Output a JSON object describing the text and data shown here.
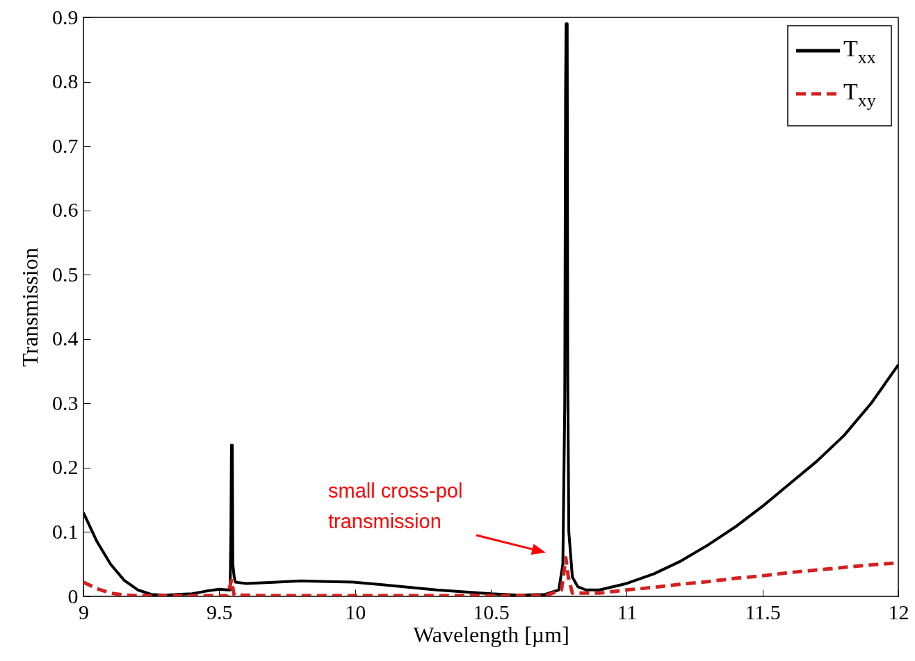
{
  "chart_data": {
    "type": "line",
    "xlabel": "Wavelength [µm]",
    "ylabel": "Transmission",
    "xlim": [
      9,
      12
    ],
    "ylim": [
      0,
      0.9
    ],
    "xticks": [
      9,
      9.5,
      10,
      10.5,
      11,
      11.5,
      12
    ],
    "yticks": [
      0,
      0.1,
      0.2,
      0.3,
      0.4,
      0.5,
      0.6,
      0.7,
      0.8,
      0.9
    ],
    "grid": false,
    "legend": "top right",
    "series": [
      {
        "name": "T$_{xx}$",
        "color": "#000000",
        "line_style": "solid",
        "x": [
          9,
          9.05,
          9.1,
          9.15,
          9.2,
          9.25,
          9.3,
          9.4,
          9.45,
          9.5,
          9.53,
          9.54,
          9.543,
          9.545,
          9.548,
          9.55,
          9.555,
          9.56,
          9.6,
          9.7,
          9.8,
          9.9,
          10,
          10.1,
          10.2,
          10.3,
          10.4,
          10.5,
          10.6,
          10.7,
          10.75,
          10.765,
          10.772,
          10.775,
          10.777,
          10.781,
          10.783,
          10.787,
          10.8,
          10.82,
          10.85,
          10.9,
          11,
          11.1,
          11.2,
          11.3,
          11.4,
          11.5,
          11.6,
          11.7,
          11.8,
          11.9,
          12
        ],
        "values": [
          0.13,
          0.085,
          0.05,
          0.025,
          0.01,
          0.003,
          0.002,
          0.004,
          0.008,
          0.011,
          0.01,
          0.01,
          0.1,
          0.235,
          0.235,
          0.05,
          0.03,
          0.022,
          0.02,
          0.022,
          0.024,
          0.023,
          0.022,
          0.018,
          0.014,
          0.01,
          0.007,
          0.004,
          0.002,
          0.003,
          0.01,
          0.05,
          0.3,
          0.78,
          0.89,
          0.89,
          0.34,
          0.1,
          0.03,
          0.015,
          0.01,
          0.01,
          0.02,
          0.035,
          0.055,
          0.08,
          0.108,
          0.14,
          0.175,
          0.21,
          0.25,
          0.3,
          0.36
        ]
      },
      {
        "name": "T$_{xy}$",
        "color": "#d42020",
        "line_style": "dashed",
        "x": [
          9,
          9.05,
          9.1,
          9.15,
          9.2,
          9.3,
          9.4,
          9.53,
          9.545,
          9.555,
          9.7,
          10,
          10.3,
          10.5,
          10.7,
          10.76,
          10.776,
          10.785,
          10.8,
          10.9,
          11,
          11.1,
          11.2,
          11.3,
          11.4,
          11.5,
          11.6,
          11.7,
          11.8,
          11.9,
          12
        ],
        "values": [
          0.022,
          0.012,
          0.005,
          0.002,
          0.001,
          0.001,
          0.001,
          0.001,
          0.025,
          0.002,
          0.001,
          0.001,
          0.001,
          0.001,
          0.001,
          0.01,
          0.06,
          0.03,
          0.005,
          0.005,
          0.01,
          0.014,
          0.019,
          0.023,
          0.028,
          0.032,
          0.037,
          0.041,
          0.045,
          0.049,
          0.052
        ]
      }
    ],
    "annotations": [
      "small cross-pol\ntransmission"
    ]
  }
}
